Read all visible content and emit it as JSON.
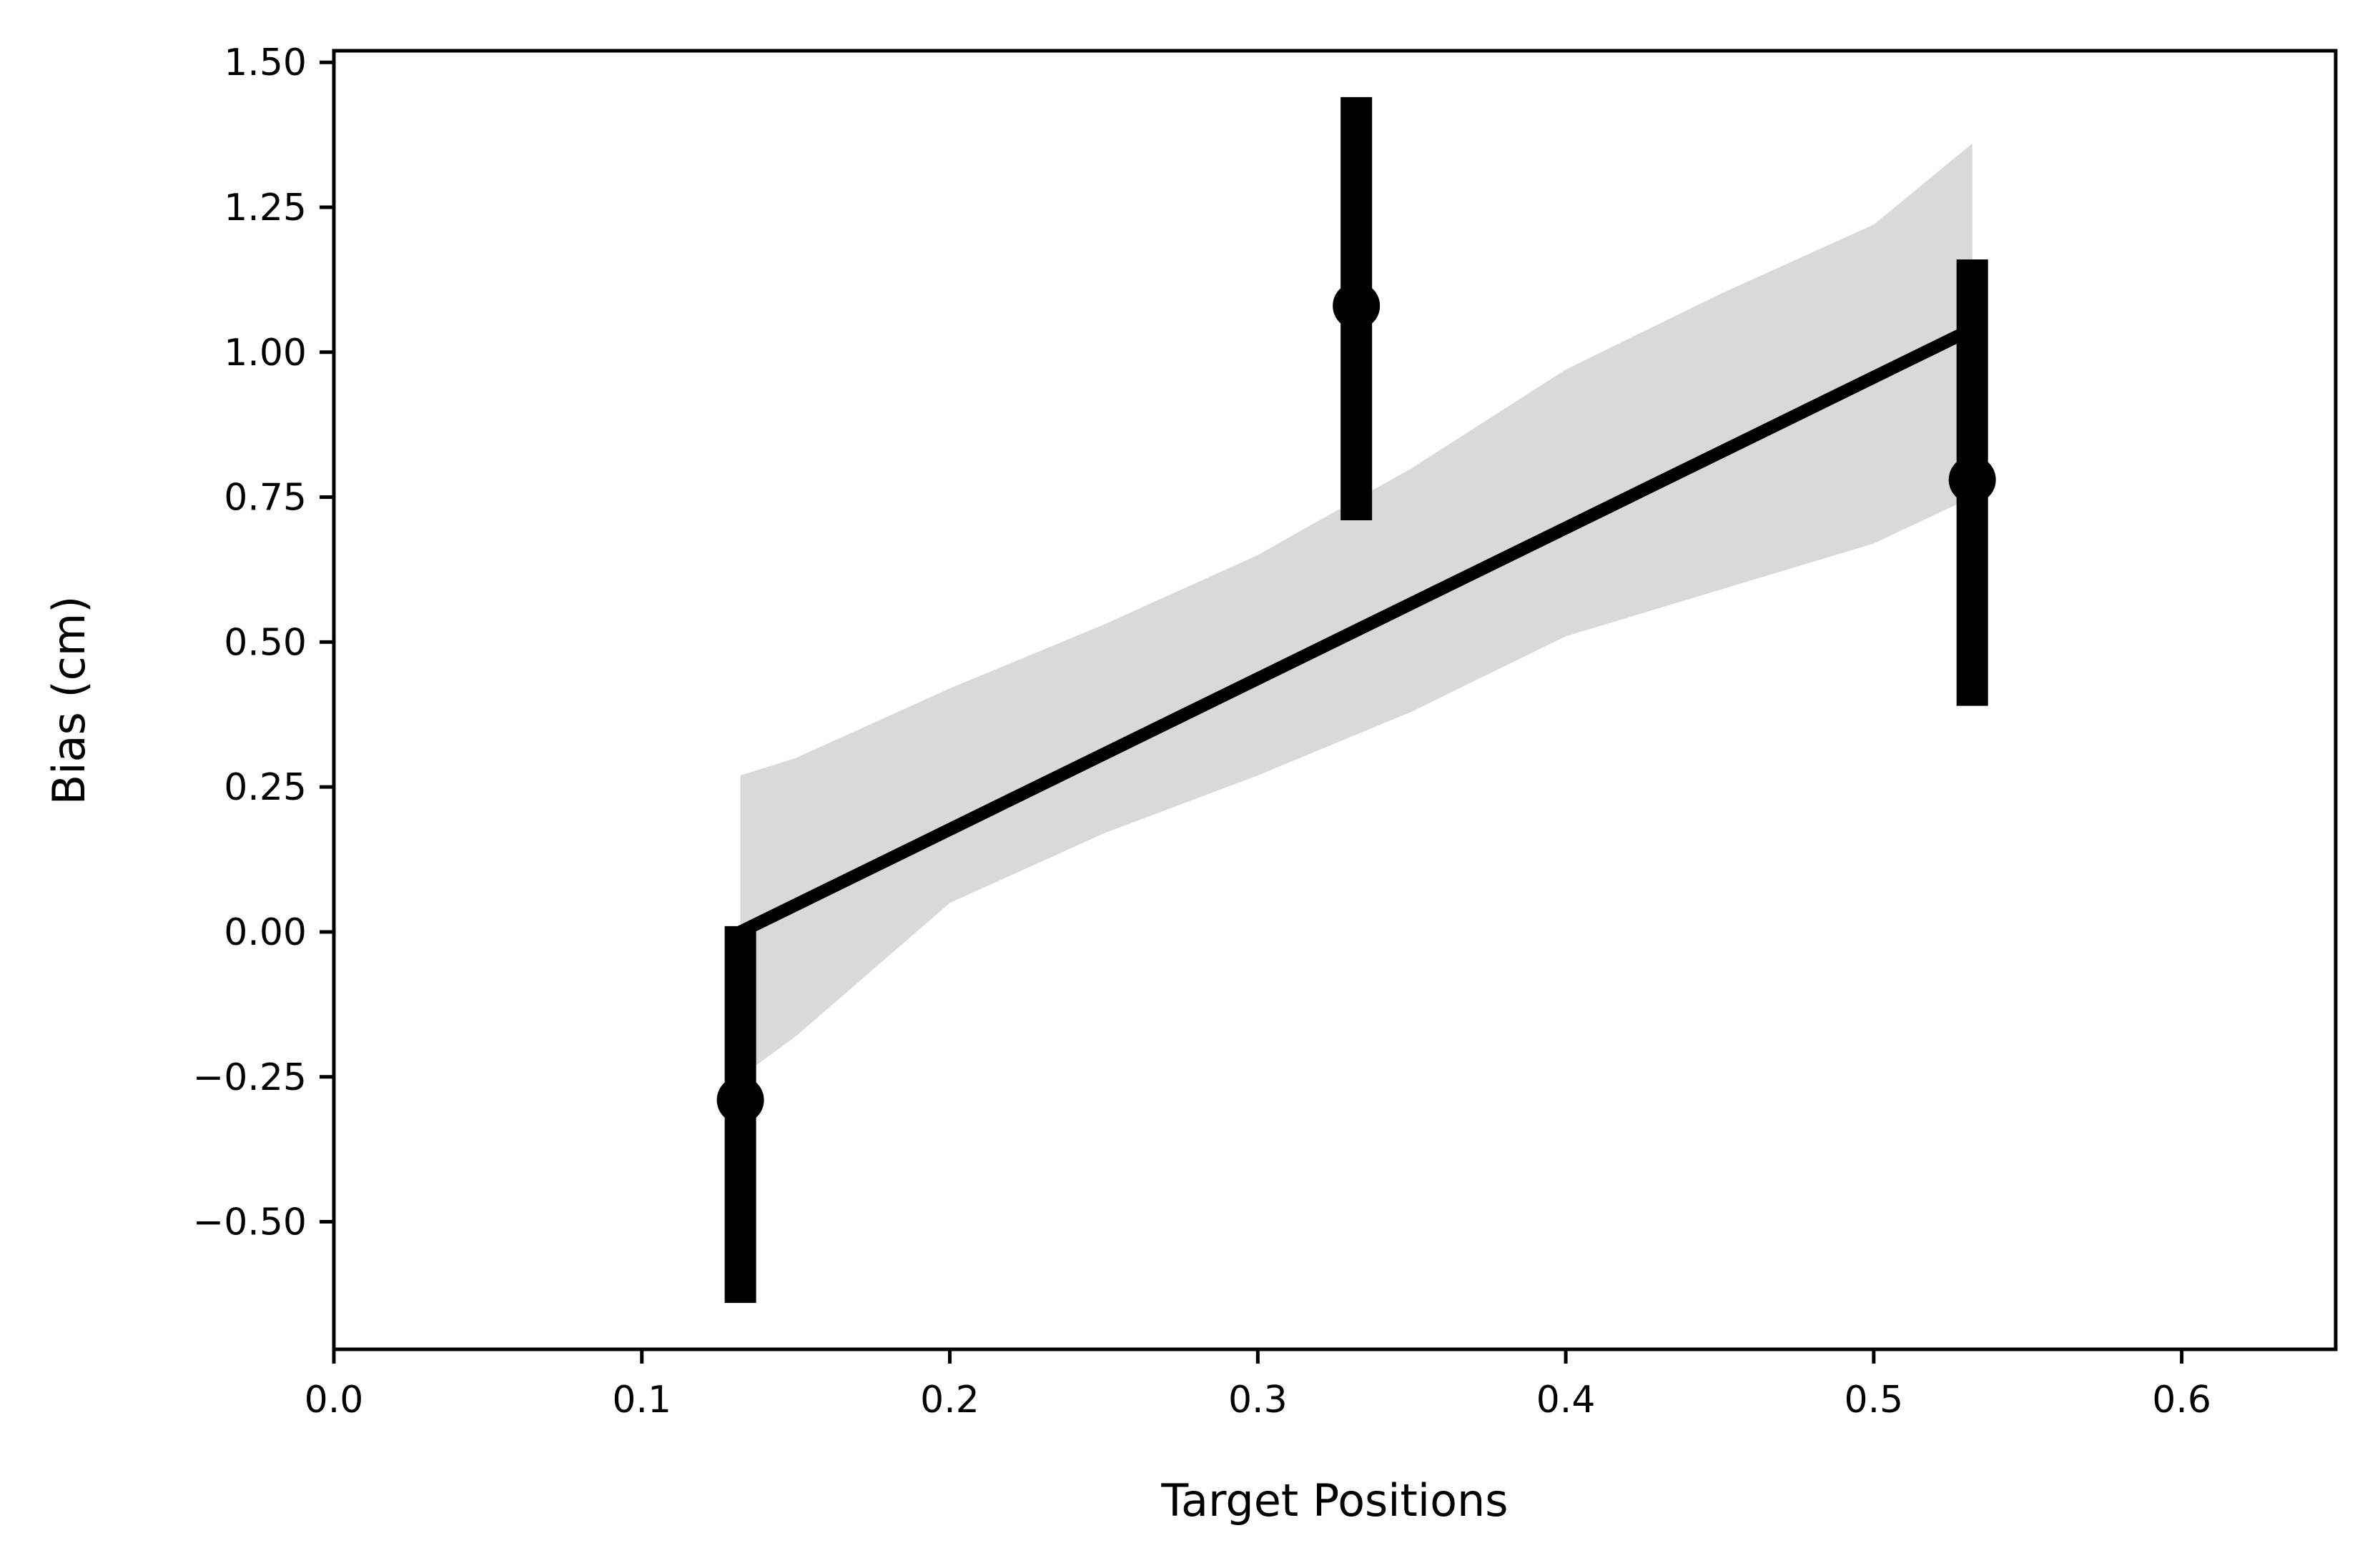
{
  "chart_data": {
    "type": "scatter",
    "xlabel": "Target Positions",
    "ylabel": "Bias (cm)",
    "xlim": [
      0.0,
      0.65
    ],
    "ylim": [
      -0.72,
      1.52
    ],
    "x_ticks": [
      0.0,
      0.1,
      0.2,
      0.3,
      0.4,
      0.5,
      0.6
    ],
    "x_tick_labels": [
      "0.0",
      "0.1",
      "0.2",
      "0.3",
      "0.4",
      "0.5",
      "0.6"
    ],
    "y_ticks": [
      -0.5,
      -0.25,
      0.0,
      0.25,
      0.5,
      0.75,
      1.0,
      1.25,
      1.5
    ],
    "y_tick_labels": [
      "−0.50",
      "−0.25",
      "0.00",
      "0.25",
      "0.50",
      "0.75",
      "1.00",
      "1.25",
      "1.50"
    ],
    "grid": false,
    "points": [
      {
        "x": 0.132,
        "y": -0.29,
        "err_low": -0.64,
        "err_high": 0.01
      },
      {
        "x": 0.332,
        "y": 1.08,
        "err_low": 0.71,
        "err_high": 1.44
      },
      {
        "x": 0.532,
        "y": 0.78,
        "err_low": 0.39,
        "err_high": 1.16
      }
    ],
    "regression": {
      "x": [
        0.132,
        0.532
      ],
      "y": [
        0.0,
        1.04
      ]
    },
    "confidence_band": {
      "x": [
        0.132,
        0.15,
        0.2,
        0.25,
        0.3,
        0.35,
        0.4,
        0.45,
        0.5,
        0.532
      ],
      "lower": [
        -0.25,
        -0.18,
        0.05,
        0.17,
        0.27,
        0.38,
        0.51,
        0.59,
        0.67,
        0.75
      ],
      "upper": [
        0.27,
        0.3,
        0.42,
        0.53,
        0.65,
        0.8,
        0.97,
        1.1,
        1.22,
        1.36
      ]
    },
    "colors": {
      "marker": "#000000",
      "line": "#000000",
      "band": "#d9d9d9"
    }
  }
}
